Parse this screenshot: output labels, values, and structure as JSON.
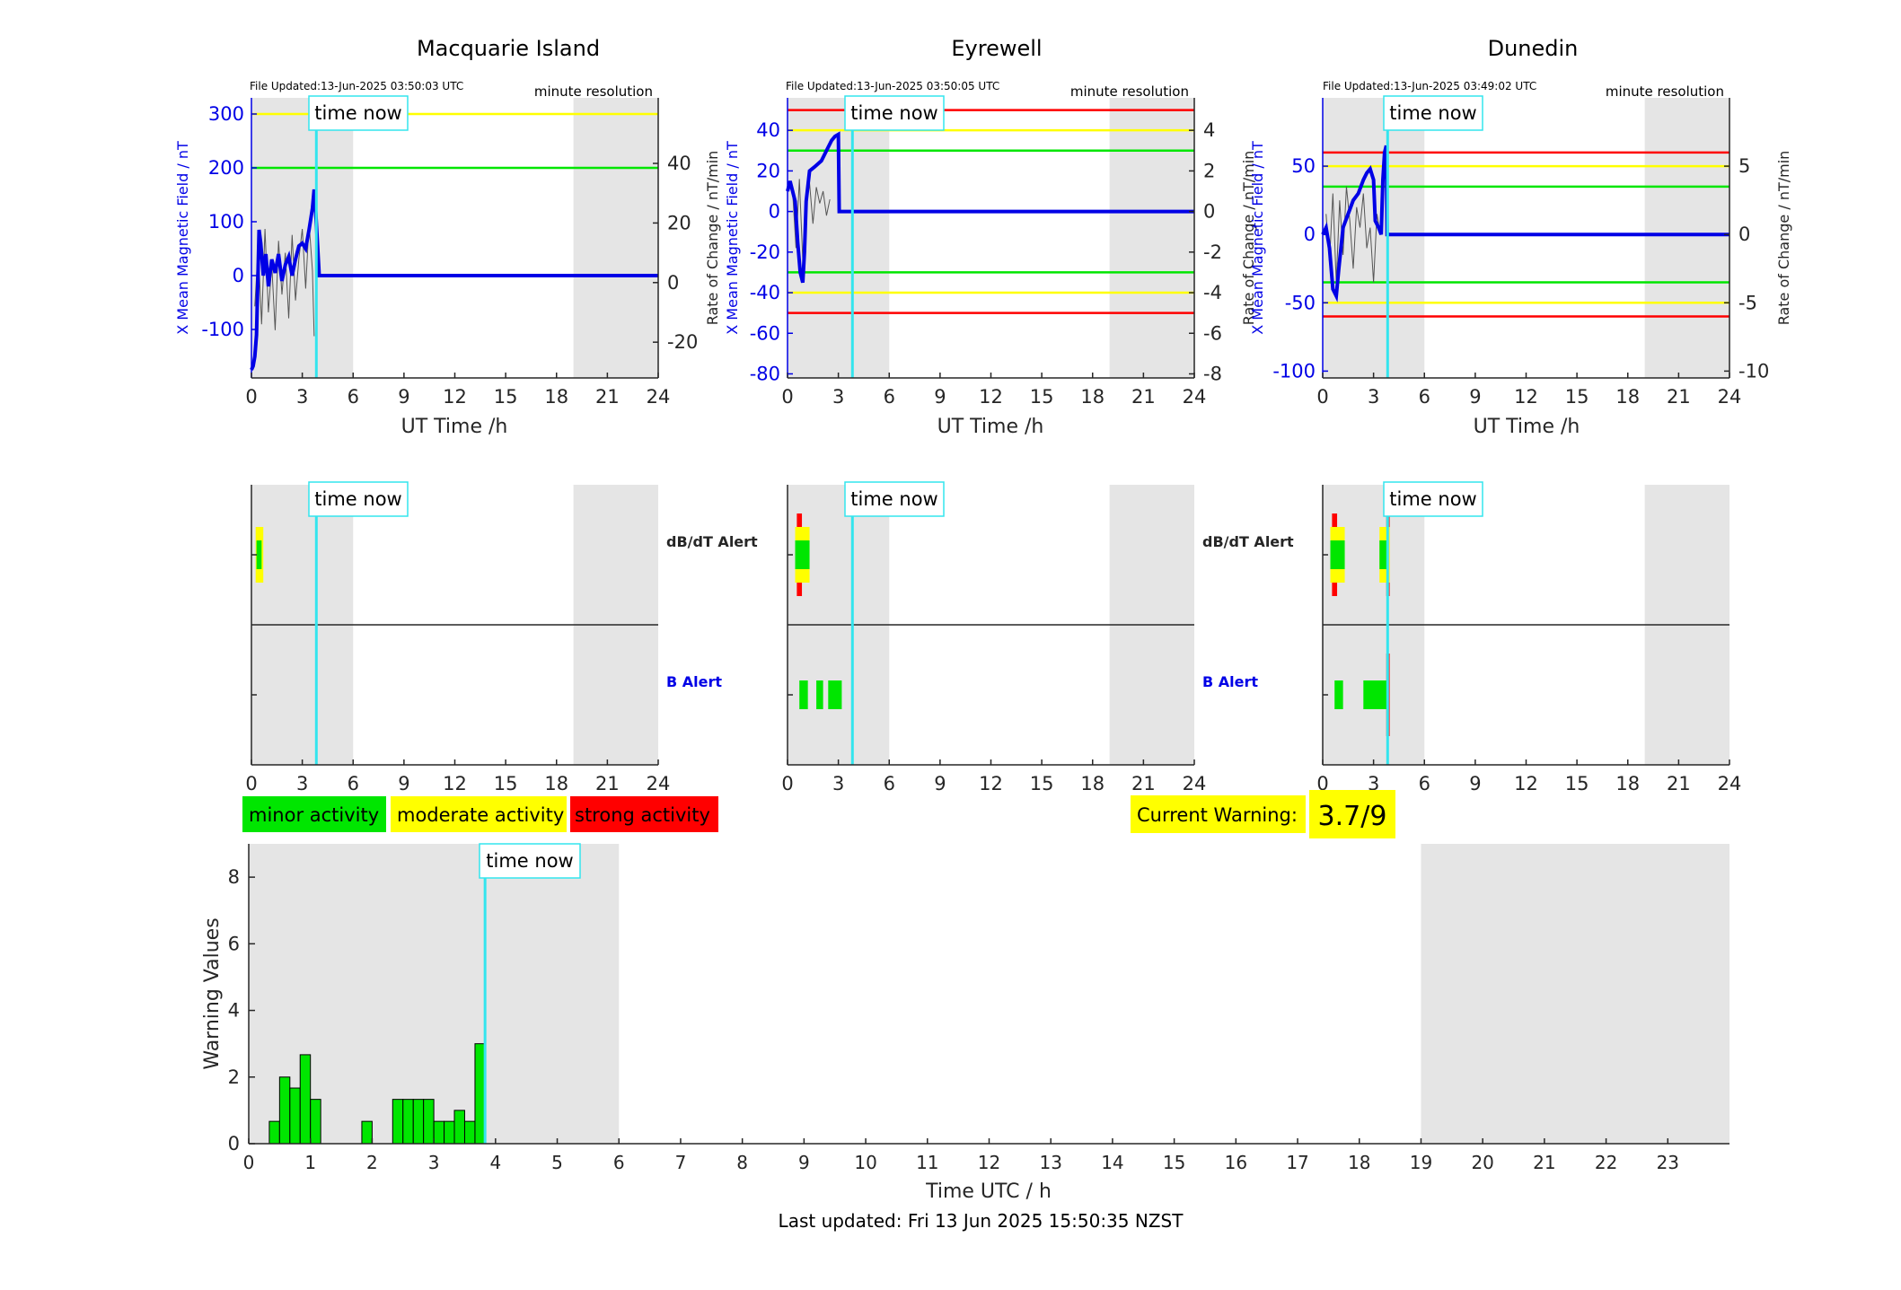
{
  "colors": {
    "field": "#0000e6",
    "rate": "#555555",
    "minor": "#00e600",
    "moderate": "#ffff00",
    "strong": "#ff0000",
    "now_line": "#33e5ee",
    "shade": "#e5e5e5"
  },
  "labels": {
    "time_now": "time now",
    "minute_resolution": "minute resolution",
    "dbdt_alert": "dB/dT Alert",
    "b_alert": "B Alert",
    "x_field_axis": "X Mean Magnetic Field / nT",
    "rate_axis": "Rate of Change / nT/min",
    "ut_time_axis": "UT Time /h",
    "warning_axis": "Warning Values",
    "utc_time_axis": "Time UTC / h",
    "current_warning_label": "Current Warning:",
    "current_warning_value": "3.7/9",
    "last_updated": "Last updated: Fri 13 Jun 2025 15:50:35 NZST"
  },
  "legend": [
    {
      "key": "minor",
      "label": "minor activity"
    },
    {
      "key": "moderate",
      "label": "moderate activity"
    },
    {
      "key": "strong",
      "label": "strong activity"
    }
  ],
  "chart_data": [
    {
      "type": "line",
      "title": "Macquarie Island",
      "file_updated": "File Updated:13-Jun-2025 03:50:03 UTC",
      "xlabel": "UT Time /h",
      "ylabel": "X Mean Magnetic Field / nT",
      "y2label": "Rate of Change / nT/min",
      "xlim": [
        0,
        24
      ],
      "ylim": [
        -190,
        330
      ],
      "y2lim": [
        -32,
        62
      ],
      "xticks": [
        0,
        3,
        6,
        9,
        12,
        15,
        18,
        21,
        24
      ],
      "yticks": [
        -100,
        0,
        100,
        200,
        300
      ],
      "y2ticks": [
        -20,
        0,
        20,
        40
      ],
      "now": 3.83,
      "shade": [
        [
          0,
          6
        ],
        [
          19,
          24
        ]
      ],
      "thresholds": [
        {
          "value": 300,
          "color": "#ffff00"
        },
        {
          "value": 200,
          "color": "#00e600"
        }
      ],
      "series": {
        "x": [
          0,
          0.1,
          0.2,
          0.3,
          0.4,
          0.45,
          0.55,
          0.7,
          0.85,
          1.0,
          1.2,
          1.4,
          1.6,
          1.8,
          2.0,
          2.2,
          2.4,
          2.6,
          2.8,
          3.0,
          3.2,
          3.4,
          3.6,
          3.7,
          3.8,
          4,
          24
        ],
        "y": [
          -175,
          -168,
          -150,
          -110,
          20,
          85,
          60,
          0,
          40,
          -20,
          30,
          5,
          40,
          -10,
          20,
          35,
          0,
          30,
          55,
          60,
          50,
          85,
          125,
          160,
          115,
          0,
          0
        ]
      },
      "rate_x": [
        0.2,
        0.4,
        0.6,
        0.8,
        1.0,
        1.2,
        1.4,
        1.6,
        1.8,
        2.0,
        2.2,
        2.4,
        2.6,
        2.8,
        3.0,
        3.2,
        3.4,
        3.6,
        3.7
      ],
      "rate_y": [
        -8,
        12,
        -14,
        18,
        -10,
        6,
        -16,
        14,
        -4,
        10,
        -12,
        16,
        -6,
        8,
        18,
        -2,
        20,
        4,
        -18
      ]
    },
    {
      "type": "line",
      "title": "Eyrewell",
      "file_updated": "File Updated:13-Jun-2025 03:50:05 UTC",
      "xlabel": "UT Time /h",
      "ylabel": "X Mean Magnetic Field / nT",
      "y2label": "Rate of Change / nT/min",
      "xlim": [
        0,
        24
      ],
      "ylim": [
        -82,
        56
      ],
      "y2lim": [
        -8.2,
        5.6
      ],
      "xticks": [
        0,
        3,
        6,
        9,
        12,
        15,
        18,
        21,
        24
      ],
      "yticks": [
        -80,
        -60,
        -40,
        -20,
        0,
        20,
        40
      ],
      "y2ticks": [
        -8,
        -6,
        -4,
        -2,
        0,
        2,
        4
      ],
      "now": 3.83,
      "shade": [
        [
          0,
          6
        ],
        [
          19,
          24
        ]
      ],
      "thresholds": [
        {
          "value": 50,
          "color": "#ff0000"
        },
        {
          "value": 40,
          "color": "#ffff00"
        },
        {
          "value": 30,
          "color": "#00e600"
        },
        {
          "value": -30,
          "color": "#00e600"
        },
        {
          "value": -40,
          "color": "#ffff00"
        },
        {
          "value": -50,
          "color": "#ff0000"
        }
      ],
      "series": {
        "x": [
          0,
          0.15,
          0.3,
          0.45,
          0.6,
          0.75,
          0.9,
          1.0,
          1.1,
          1.3,
          1.6,
          2.0,
          2.3,
          2.6,
          2.8,
          3.0,
          3.05,
          4,
          24
        ],
        "y": [
          10,
          15,
          10,
          5,
          -15,
          -30,
          -35,
          -20,
          5,
          20,
          22,
          25,
          30,
          35,
          37,
          38,
          0,
          0,
          0
        ]
      },
      "rate_x": [
        0.3,
        0.5,
        0.7,
        0.9,
        1.1,
        1.3,
        1.5,
        1.7,
        1.9,
        2.1,
        2.3,
        2.5
      ],
      "rate_y": [
        1.0,
        -1.8,
        1.6,
        -2.4,
        0.8,
        1.4,
        -0.6,
        1.2,
        0.4,
        1.0,
        -0.2,
        0.6
      ]
    },
    {
      "type": "line",
      "title": "Dunedin",
      "file_updated": "File Updated:13-Jun-2025 03:49:02 UTC",
      "xlabel": "UT Time /h",
      "ylabel": "X Mean Magnetic Field / nT",
      "y2label": "Rate of Change / nT/min",
      "xlim": [
        0,
        24
      ],
      "ylim": [
        -105,
        100
      ],
      "y2lim": [
        -10.5,
        10
      ],
      "xticks": [
        0,
        3,
        6,
        9,
        12,
        15,
        18,
        21,
        24
      ],
      "yticks": [
        -100,
        -50,
        0,
        50
      ],
      "y2ticks": [
        -10,
        -5,
        0,
        5
      ],
      "now": 3.83,
      "shade": [
        [
          0,
          6
        ],
        [
          19,
          24
        ]
      ],
      "thresholds": [
        {
          "value": 60,
          "color": "#ff0000"
        },
        {
          "value": 50,
          "color": "#ffff00"
        },
        {
          "value": 35,
          "color": "#00e600"
        },
        {
          "value": -35,
          "color": "#00e600"
        },
        {
          "value": -50,
          "color": "#ffff00"
        },
        {
          "value": -60,
          "color": "#ff0000"
        }
      ],
      "series": {
        "x": [
          0,
          0.2,
          0.4,
          0.6,
          0.8,
          0.95,
          1.2,
          1.5,
          1.8,
          2.1,
          2.4,
          2.6,
          2.8,
          3.0,
          3.1,
          3.3,
          3.45,
          3.55,
          3.65,
          3.75,
          3.8,
          4,
          24
        ],
        "y": [
          0,
          5,
          -10,
          -40,
          -45,
          -25,
          5,
          15,
          25,
          30,
          40,
          45,
          48,
          40,
          10,
          5,
          0,
          40,
          60,
          65,
          0,
          0,
          0
        ]
      },
      "rate_x": [
        0.2,
        0.4,
        0.6,
        0.8,
        1.0,
        1.2,
        1.4,
        1.6,
        1.8,
        2.0,
        2.2,
        2.4,
        2.6,
        2.8,
        3.0,
        3.2,
        3.4
      ],
      "rate_y": [
        1.5,
        -2.0,
        3.0,
        -3.5,
        2.5,
        -1.5,
        3.5,
        1.0,
        -2.5,
        2.0,
        0.5,
        3.0,
        -1.0,
        0.5,
        -3.5,
        1.5,
        0.0
      ]
    },
    {
      "type": "alert",
      "station": "Macquarie Island",
      "xlim": [
        0,
        24
      ],
      "xticks": [
        0,
        3,
        6,
        9,
        12,
        15,
        18,
        21,
        24
      ],
      "now": 3.83,
      "shade": [
        [
          0,
          6
        ],
        [
          19,
          24
        ]
      ],
      "dbdt": [
        {
          "t0": 0.25,
          "t1": 0.7,
          "level": 2
        },
        {
          "t0": 0.3,
          "t1": 0.6,
          "level": 1
        }
      ],
      "b": []
    },
    {
      "type": "alert",
      "station": "Eyrewell",
      "xlim": [
        0,
        24
      ],
      "xticks": [
        0,
        3,
        6,
        9,
        12,
        15,
        18,
        21,
        24
      ],
      "now": 3.83,
      "shade": [
        [
          0,
          6
        ],
        [
          19,
          24
        ]
      ],
      "dbdt": [
        {
          "t0": 0.55,
          "t1": 0.85,
          "level": 3
        },
        {
          "t0": 0.45,
          "t1": 1.3,
          "level": 2
        },
        {
          "t0": 0.45,
          "t1": 1.3,
          "level": 1
        }
      ],
      "b": [
        {
          "t0": 0.7,
          "t1": 1.2,
          "level": 1
        },
        {
          "t0": 1.7,
          "t1": 2.1,
          "level": 1
        },
        {
          "t0": 2.4,
          "t1": 3.2,
          "level": 1
        }
      ]
    },
    {
      "type": "alert",
      "station": "Dunedin",
      "xlim": [
        0,
        24
      ],
      "xticks": [
        0,
        3,
        6,
        9,
        12,
        15,
        18,
        21,
        24
      ],
      "now": 3.83,
      "shade": [
        [
          0,
          6
        ],
        [
          19,
          24
        ]
      ],
      "dbdt": [
        {
          "t0": 0.55,
          "t1": 0.85,
          "level": 3
        },
        {
          "t0": 0.45,
          "t1": 1.3,
          "level": 2
        },
        {
          "t0": 0.45,
          "t1": 1.3,
          "level": 1
        },
        {
          "t0": 3.35,
          "t1": 3.95,
          "level": 2
        },
        {
          "t0": 3.35,
          "t1": 3.8,
          "level": 1
        },
        {
          "t0": 3.75,
          "t1": 3.95,
          "level": 3
        }
      ],
      "b": [
        {
          "t0": 0.7,
          "t1": 1.2,
          "level": 1
        },
        {
          "t0": 2.4,
          "t1": 3.8,
          "level": 1
        },
        {
          "t0": 3.75,
          "t1": 3.95,
          "level": 3
        }
      ]
    },
    {
      "type": "bar",
      "xlabel": "Time UTC / h",
      "ylabel": "Warning Values",
      "xlim": [
        0,
        24
      ],
      "ylim": [
        0,
        9
      ],
      "xticks": [
        0,
        1,
        2,
        3,
        4,
        5,
        6,
        7,
        8,
        9,
        10,
        11,
        12,
        13,
        14,
        15,
        16,
        17,
        18,
        19,
        20,
        21,
        22,
        23
      ],
      "yticks": [
        0,
        2,
        4,
        6,
        8
      ],
      "now": 3.83,
      "shade": [
        [
          0,
          6
        ],
        [
          19,
          24
        ]
      ],
      "bar_width": 0.1667,
      "bars": [
        {
          "t": 0.333,
          "v": 0.67
        },
        {
          "t": 0.5,
          "v": 2.0
        },
        {
          "t": 0.667,
          "v": 1.67
        },
        {
          "t": 0.833,
          "v": 2.67
        },
        {
          "t": 1.0,
          "v": 1.33
        },
        {
          "t": 1.833,
          "v": 0.67
        },
        {
          "t": 2.333,
          "v": 1.33
        },
        {
          "t": 2.5,
          "v": 1.33
        },
        {
          "t": 2.667,
          "v": 1.33
        },
        {
          "t": 2.833,
          "v": 1.33
        },
        {
          "t": 3.0,
          "v": 0.67
        },
        {
          "t": 3.167,
          "v": 0.67
        },
        {
          "t": 3.333,
          "v": 1.0
        },
        {
          "t": 3.5,
          "v": 0.67
        },
        {
          "t": 3.667,
          "v": 3.0
        }
      ]
    }
  ]
}
